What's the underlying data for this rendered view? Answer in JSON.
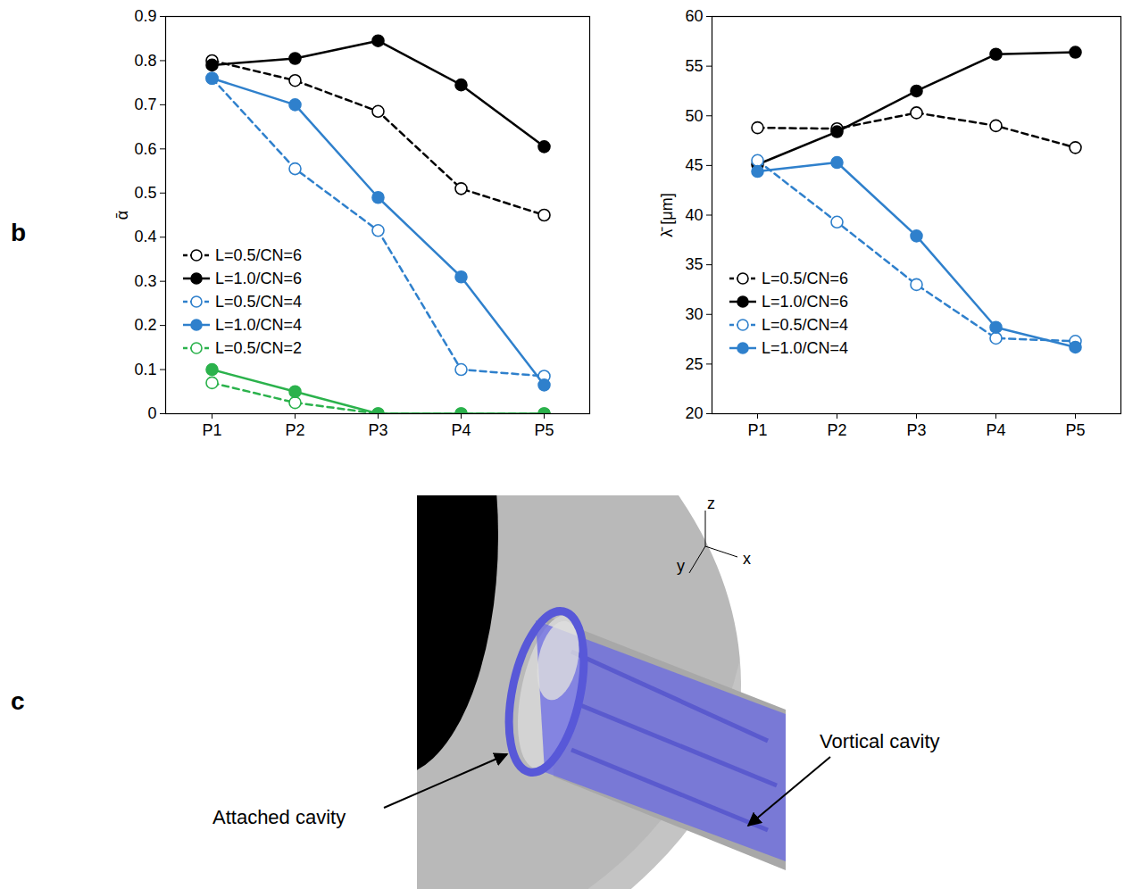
{
  "chart_panel_label": "b",
  "chart_data": [
    {
      "type": "line",
      "y_label": "ᾱ",
      "categories": [
        "P1",
        "P2",
        "P3",
        "P4",
        "P5"
      ],
      "ylim": [
        0,
        0.9
      ],
      "yticks": [
        0,
        0.1,
        0.2,
        0.3,
        0.4,
        0.5,
        0.6,
        0.7,
        0.8,
        0.9
      ],
      "legend": "lower left",
      "series": [
        {
          "name": "L=0.5/CN=6",
          "color": "#000000",
          "marker": "circle-open",
          "line_style": "dashed",
          "values": [
            0.8,
            0.755,
            0.685,
            0.51,
            0.45
          ]
        },
        {
          "name": "L=1.0/CN=6",
          "color": "#000000",
          "marker": "circle",
          "line_style": "solid",
          "values": [
            0.79,
            0.805,
            0.845,
            0.745,
            0.605
          ]
        },
        {
          "name": "L=0.5/CN=4",
          "color": "#2f80cc",
          "marker": "circle-open",
          "line_style": "dashed",
          "values": [
            0.76,
            0.555,
            0.415,
            0.1,
            0.085
          ]
        },
        {
          "name": "L=1.0/CN=4",
          "color": "#2f80cc",
          "marker": "circle",
          "line_style": "solid",
          "values": [
            0.76,
            0.7,
            0.49,
            0.31,
            0.065
          ]
        },
        {
          "name": "L=0.5/CN=2",
          "color": "#2bb24c",
          "marker": "circle-open",
          "line_style": "dashed",
          "values": [
            0.07,
            0.025,
            0,
            0,
            0
          ]
        },
        {
          "name": null,
          "color": "#2bb24c",
          "marker": "circle",
          "line_style": "solid",
          "values": [
            0.1,
            0.05,
            0,
            0,
            0
          ]
        }
      ]
    },
    {
      "type": "line",
      "y_label": "λ̄ [μm]",
      "categories": [
        "P1",
        "P2",
        "P3",
        "P4",
        "P5"
      ],
      "ylim": [
        20,
        60
      ],
      "yticks": [
        20,
        25,
        30,
        35,
        40,
        45,
        50,
        55,
        60
      ],
      "legend": "lower left",
      "series": [
        {
          "name": "L=0.5/CN=6",
          "color": "#000000",
          "marker": "circle-open",
          "line_style": "dashed",
          "values": [
            48.8,
            48.7,
            50.3,
            49.0,
            46.8
          ]
        },
        {
          "name": "L=1.0/CN=6",
          "color": "#000000",
          "marker": "circle",
          "line_style": "solid",
          "values": [
            45.1,
            48.4,
            52.5,
            56.2,
            56.4
          ]
        },
        {
          "name": "L=0.5/CN=4",
          "color": "#2f80cc",
          "marker": "circle-open",
          "line_style": "dashed",
          "values": [
            45.5,
            39.3,
            33.0,
            27.6,
            27.3
          ]
        },
        {
          "name": "L=1.0/CN=4",
          "color": "#2f80cc",
          "marker": "circle",
          "line_style": "solid",
          "values": [
            44.4,
            45.3,
            37.9,
            28.7,
            26.7
          ]
        }
      ]
    }
  ],
  "illustration": {
    "panel_label": "c",
    "axis_labels": [
      "z",
      "x",
      "y"
    ],
    "annotations": [
      "Attached cavity",
      "Vortical cavity"
    ]
  }
}
